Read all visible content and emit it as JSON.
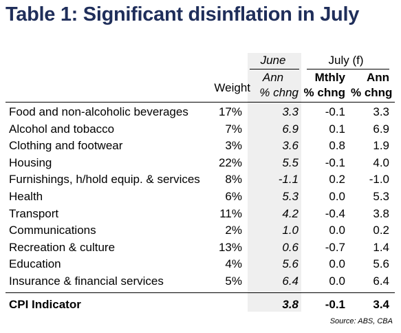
{
  "title": "Table 1: Significant disinflation in July",
  "headers": {
    "june": "June",
    "july": "July (f)",
    "weight": "Weight",
    "june_ann_1": "Ann",
    "june_ann_2": "% chng",
    "mthly_1": "Mthly",
    "mthly_2": "% chng",
    "ann_1": "Ann",
    "ann_2": "% chng"
  },
  "rows": [
    {
      "label": "Food and non-alcoholic beverages",
      "weight": "17%",
      "june": "3.3",
      "mthly": "-0.1",
      "ann": "3.3"
    },
    {
      "label": "Alcohol and tobacco",
      "weight": "7%",
      "june": "6.9",
      "mthly": "0.1",
      "ann": "6.9"
    },
    {
      "label": "Clothing and footwear",
      "weight": "3%",
      "june": "3.6",
      "mthly": "0.8",
      "ann": "1.9"
    },
    {
      "label": "Housing",
      "weight": "22%",
      "june": "5.5",
      "mthly": "-0.1",
      "ann": "4.0"
    },
    {
      "label": "Furnishings, h/hold equip. & services",
      "weight": "8%",
      "june": "-1.1",
      "mthly": "0.2",
      "ann": "-1.0"
    },
    {
      "label": "Health",
      "weight": "6%",
      "june": "5.3",
      "mthly": "0.0",
      "ann": "5.3"
    },
    {
      "label": "Transport",
      "weight": "11%",
      "june": "4.2",
      "mthly": "-0.4",
      "ann": "3.8"
    },
    {
      "label": "Communications",
      "weight": "2%",
      "june": "1.0",
      "mthly": "0.0",
      "ann": "0.2"
    },
    {
      "label": "Recreation & culture",
      "weight": "13%",
      "june": "0.6",
      "mthly": "-0.7",
      "ann": "1.4"
    },
    {
      "label": "Education",
      "weight": "4%",
      "june": "5.6",
      "mthly": "0.0",
      "ann": "5.6"
    },
    {
      "label": "Insurance & financial services",
      "weight": "5%",
      "june": "6.4",
      "mthly": "0.0",
      "ann": "6.4"
    }
  ],
  "total": {
    "label": "CPI Indicator",
    "june": "3.8",
    "mthly": "-0.1",
    "ann": "3.4"
  },
  "source": "Source: ABS, CBA",
  "colors": {
    "title": "#1f2e5a",
    "shade": "#efefef"
  }
}
